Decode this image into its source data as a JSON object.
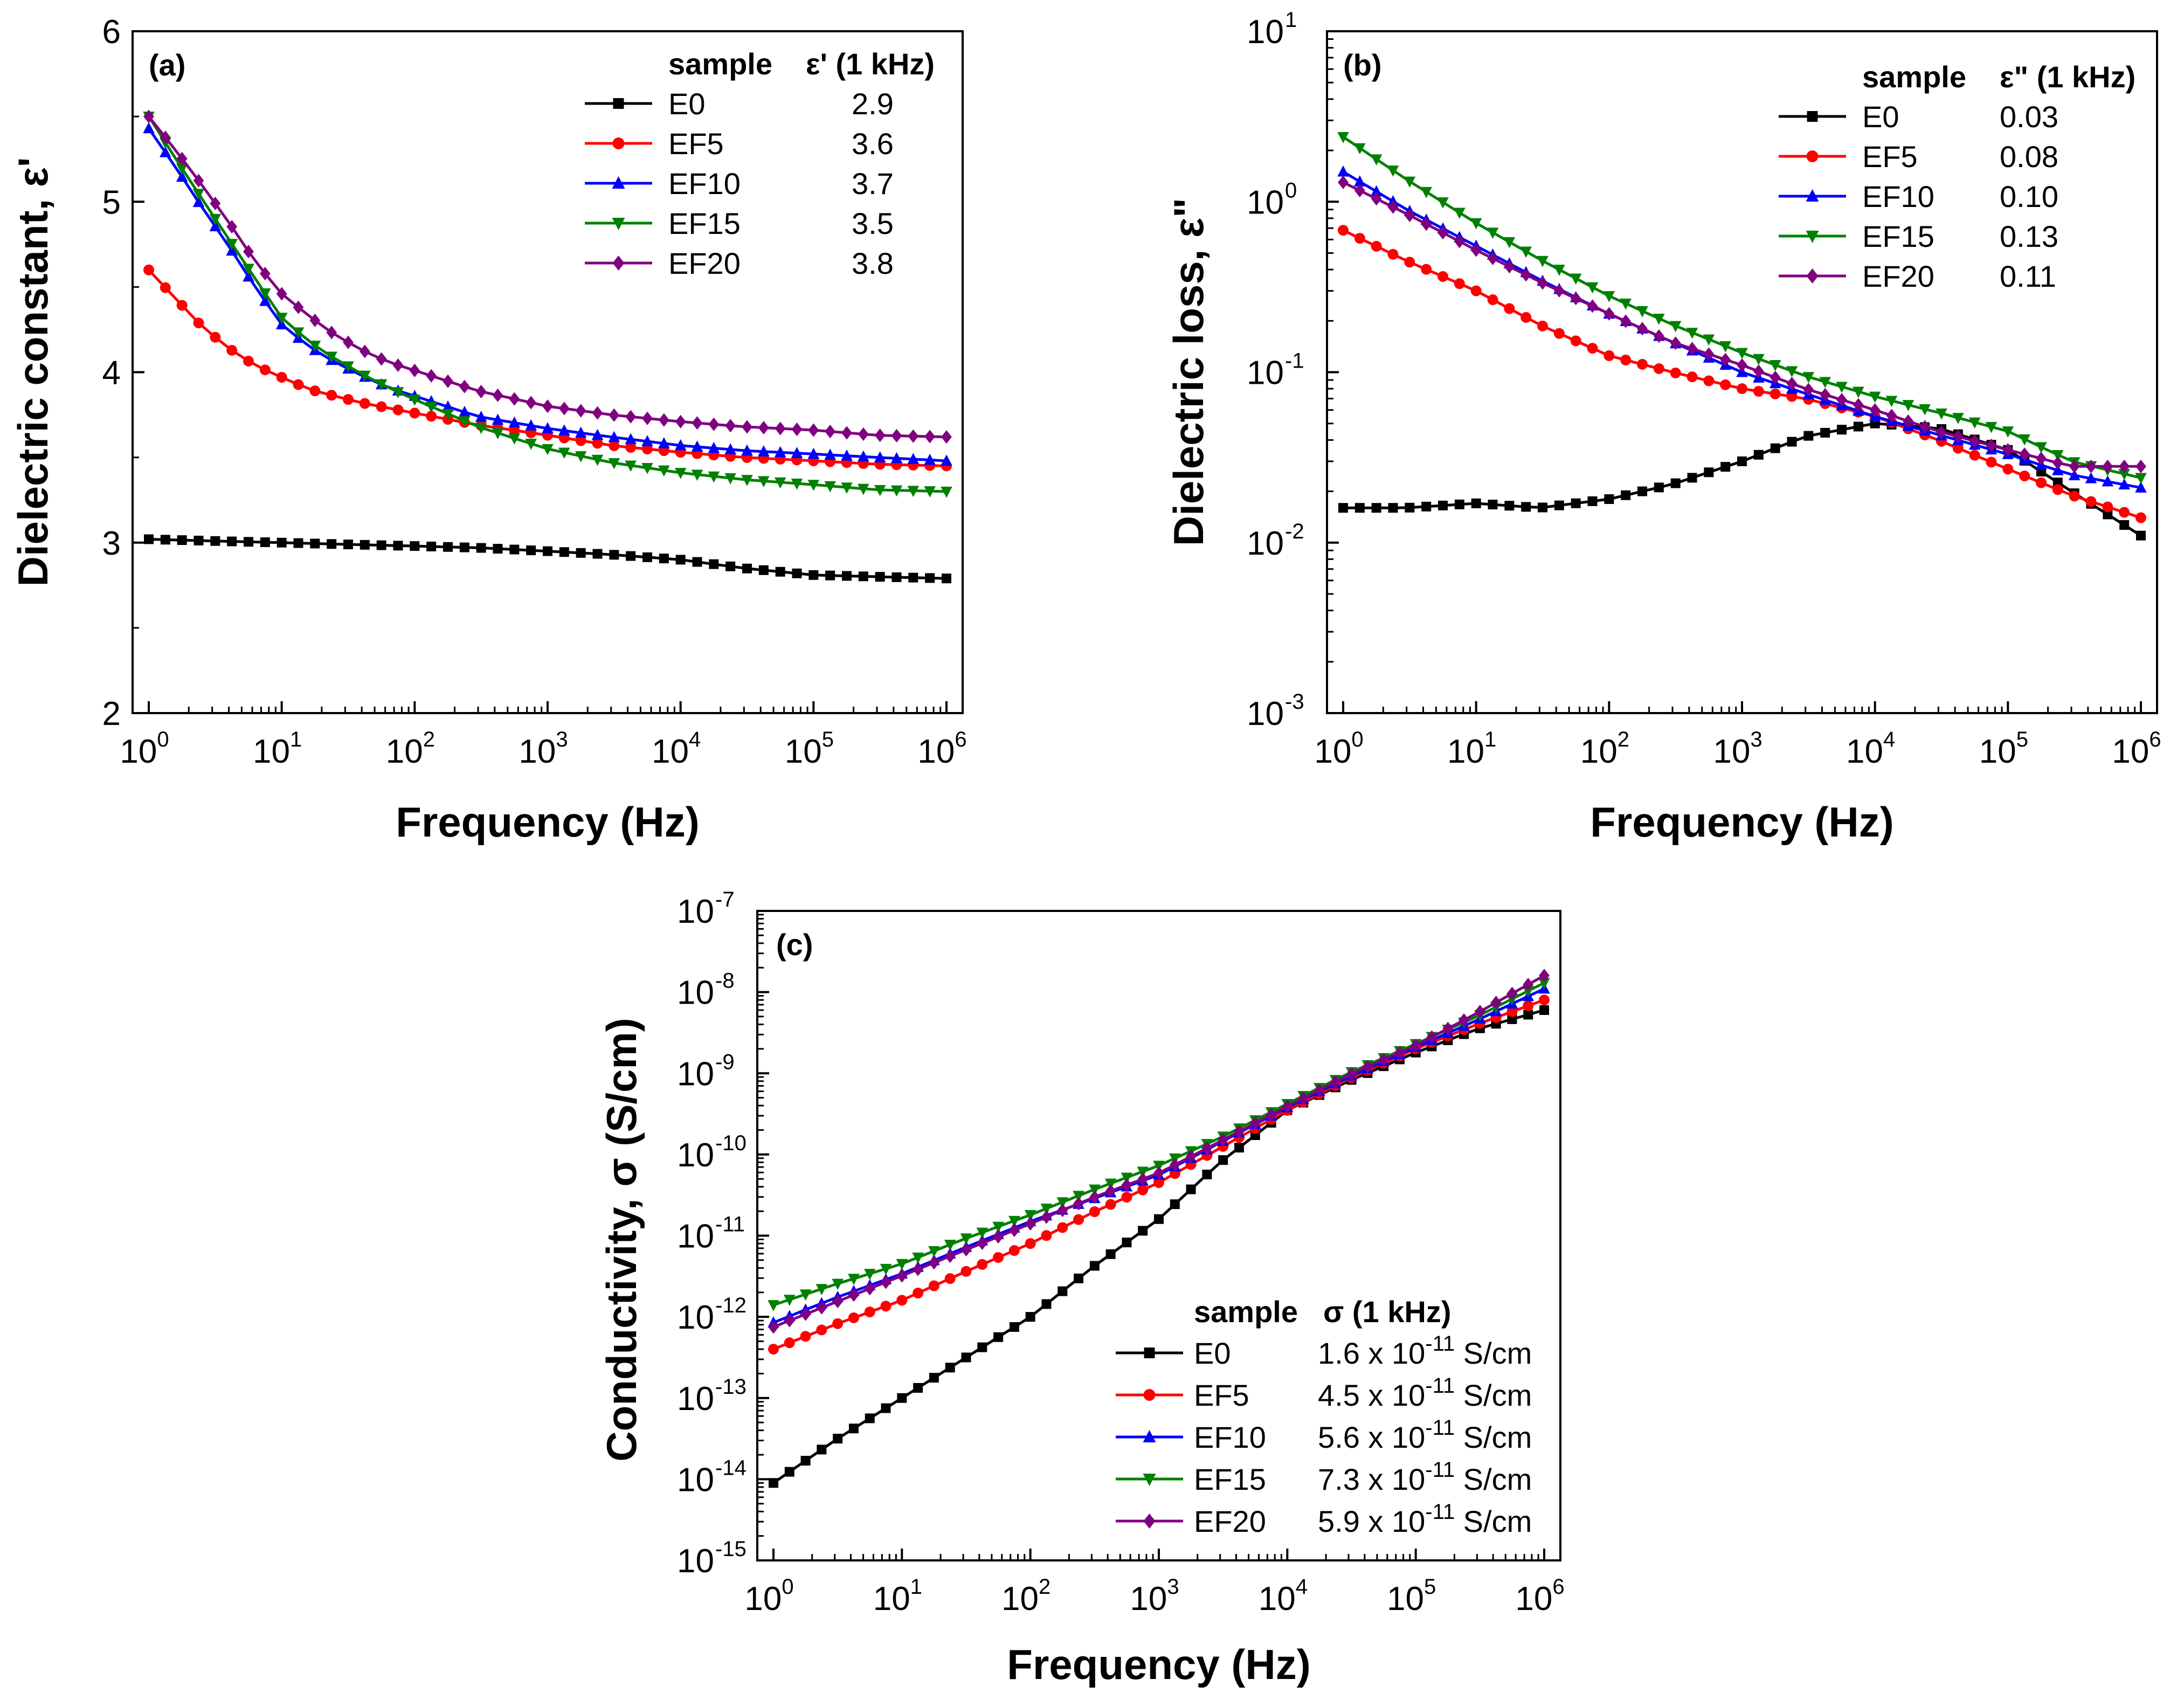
{
  "chart_data": [
    {
      "type": "line",
      "panel_label": "(a)",
      "xlabel": "Frequency (Hz)",
      "ylabel": "Dielectric constant, ε'",
      "xscale": "log",
      "yscale": "linear",
      "xlim": [
        1,
        1000000
      ],
      "ylim": [
        2,
        6
      ],
      "x_ticks": [
        {
          "base": "10",
          "exp": "0"
        },
        {
          "base": "10",
          "exp": "1"
        },
        {
          "base": "10",
          "exp": "2"
        },
        {
          "base": "10",
          "exp": "3"
        },
        {
          "base": "10",
          "exp": "4"
        },
        {
          "base": "10",
          "exp": "5"
        },
        {
          "base": "10",
          "exp": "6"
        }
      ],
      "y_ticks": [
        "2",
        "3",
        "4",
        "5",
        "6"
      ],
      "legend_position": "top-right",
      "legend_header": {
        "sample": "sample",
        "value": "ε' (1 kHz)"
      },
      "legend": [
        {
          "name": "E0",
          "value": "2.9"
        },
        {
          "name": "EF5",
          "value": "3.6"
        },
        {
          "name": "EF10",
          "value": "3.7"
        },
        {
          "name": "EF15",
          "value": "3.5"
        },
        {
          "name": "EF20",
          "value": "3.8"
        }
      ],
      "series": [
        {
          "name": "E0",
          "color": "#000000",
          "marker": "square",
          "x": [
            1,
            3,
            10,
            30,
            100,
            300,
            1000,
            3000,
            10000,
            30000,
            100000,
            300000,
            1000000
          ],
          "y": [
            3.02,
            3.01,
            3.0,
            2.99,
            2.98,
            2.97,
            2.95,
            2.93,
            2.9,
            2.85,
            2.81,
            2.8,
            2.79
          ]
        },
        {
          "name": "EF5",
          "color": "#ff0000",
          "marker": "circle",
          "x": [
            1,
            1.6,
            2.5,
            4,
            6.3,
            10,
            16,
            25,
            40,
            63,
            100,
            300,
            1000,
            3000,
            10000,
            30000,
            100000,
            300000,
            1000000
          ],
          "y": [
            4.6,
            4.43,
            4.27,
            4.14,
            4.04,
            3.97,
            3.9,
            3.86,
            3.82,
            3.79,
            3.76,
            3.69,
            3.63,
            3.57,
            3.53,
            3.5,
            3.48,
            3.46,
            3.45
          ]
        },
        {
          "name": "EF10",
          "color": "#0000ff",
          "marker": "triangle-up",
          "x": [
            1,
            1.6,
            2.5,
            4,
            6.3,
            10,
            16,
            25,
            40,
            63,
            100,
            300,
            1000,
            3000,
            10000,
            30000,
            100000,
            300000,
            1000000
          ],
          "y": [
            5.43,
            5.2,
            4.97,
            4.74,
            4.5,
            4.28,
            4.15,
            4.06,
            3.98,
            3.91,
            3.86,
            3.74,
            3.67,
            3.62,
            3.57,
            3.54,
            3.52,
            3.5,
            3.48
          ]
        },
        {
          "name": "EF15",
          "color": "#008000",
          "marker": "triangle-down",
          "x": [
            1,
            1.6,
            2.5,
            4,
            6.3,
            10,
            16,
            25,
            40,
            63,
            100,
            300,
            1000,
            3000,
            10000,
            30000,
            100000,
            300000,
            1000000
          ],
          "y": [
            5.5,
            5.25,
            5.02,
            4.78,
            4.55,
            4.32,
            4.18,
            4.08,
            3.99,
            3.91,
            3.84,
            3.68,
            3.55,
            3.47,
            3.41,
            3.37,
            3.34,
            3.31,
            3.3
          ]
        },
        {
          "name": "EF20",
          "color": "#800080",
          "marker": "diamond",
          "x": [
            1,
            1.6,
            2.5,
            4,
            6.3,
            10,
            16,
            25,
            40,
            63,
            100,
            300,
            1000,
            3000,
            10000,
            30000,
            100000,
            300000,
            1000000
          ],
          "y": [
            5.5,
            5.3,
            5.1,
            4.88,
            4.65,
            4.46,
            4.33,
            4.22,
            4.13,
            4.06,
            4.01,
            3.89,
            3.8,
            3.75,
            3.71,
            3.68,
            3.66,
            3.63,
            3.62
          ]
        }
      ]
    },
    {
      "type": "line",
      "panel_label": "(b)",
      "xlabel": "Frequency (Hz)",
      "ylabel": "Dielectric loss, ε\"",
      "xscale": "log",
      "yscale": "log",
      "xlim": [
        1,
        1000000
      ],
      "ylim": [
        0.001,
        10
      ],
      "x_ticks": [
        {
          "base": "10",
          "exp": "0"
        },
        {
          "base": "10",
          "exp": "1"
        },
        {
          "base": "10",
          "exp": "2"
        },
        {
          "base": "10",
          "exp": "3"
        },
        {
          "base": "10",
          "exp": "4"
        },
        {
          "base": "10",
          "exp": "5"
        },
        {
          "base": "10",
          "exp": "6"
        }
      ],
      "y_ticks": [
        {
          "base": "10",
          "exp": "-3"
        },
        {
          "base": "10",
          "exp": "-2"
        },
        {
          "base": "10",
          "exp": "-1"
        },
        {
          "base": "10",
          "exp": "0"
        },
        {
          "base": "10",
          "exp": "1"
        }
      ],
      "legend_position": "top-right",
      "legend_header": {
        "sample": "sample",
        "value": "ε\" (1 kHz)"
      },
      "legend": [
        {
          "name": "E0",
          "value": "0.03"
        },
        {
          "name": "EF5",
          "value": "0.08"
        },
        {
          "name": "EF10",
          "value": "0.10"
        },
        {
          "name": "EF15",
          "value": "0.13"
        },
        {
          "name": "EF20",
          "value": "0.11"
        }
      ],
      "series": [
        {
          "name": "E0",
          "color": "#000000",
          "marker": "square",
          "x": [
            1,
            3,
            10,
            30,
            100,
            300,
            1000,
            3000,
            10000,
            30000,
            100000,
            300000,
            1000000
          ],
          "y": [
            0.016,
            0.016,
            0.017,
            0.016,
            0.018,
            0.022,
            0.03,
            0.042,
            0.05,
            0.047,
            0.035,
            0.02,
            0.011
          ]
        },
        {
          "name": "EF5",
          "color": "#ff0000",
          "marker": "circle",
          "x": [
            1,
            3,
            10,
            30,
            100,
            300,
            1000,
            3000,
            10000,
            30000,
            100000,
            300000,
            1000000
          ],
          "y": [
            0.68,
            0.45,
            0.3,
            0.19,
            0.125,
            0.1,
            0.08,
            0.07,
            0.055,
            0.04,
            0.027,
            0.019,
            0.014
          ]
        },
        {
          "name": "EF10",
          "color": "#0000ff",
          "marker": "triangle-up",
          "x": [
            1,
            3,
            10,
            30,
            100,
            300,
            1000,
            3000,
            10000,
            30000,
            100000,
            300000,
            1000000
          ],
          "y": [
            1.5,
            0.9,
            0.55,
            0.35,
            0.22,
            0.15,
            0.1,
            0.075,
            0.055,
            0.043,
            0.033,
            0.025,
            0.021
          ]
        },
        {
          "name": "EF15",
          "color": "#008000",
          "marker": "triangle-down",
          "x": [
            1,
            3,
            10,
            30,
            100,
            300,
            1000,
            3000,
            10000,
            30000,
            100000,
            300000,
            1000000
          ],
          "y": [
            2.4,
            1.35,
            0.75,
            0.46,
            0.28,
            0.19,
            0.13,
            0.095,
            0.072,
            0.058,
            0.045,
            0.03,
            0.024
          ]
        },
        {
          "name": "EF20",
          "color": "#800080",
          "marker": "diamond",
          "x": [
            1,
            3,
            10,
            30,
            100,
            300,
            1000,
            3000,
            10000,
            30000,
            100000,
            300000,
            1000000
          ],
          "y": [
            1.3,
            0.85,
            0.52,
            0.34,
            0.22,
            0.15,
            0.11,
            0.08,
            0.06,
            0.045,
            0.035,
            0.028,
            0.028
          ]
        }
      ]
    },
    {
      "type": "line",
      "panel_label": "(c)",
      "xlabel": "Frequency (Hz)",
      "ylabel": "Conductivity, σ (S/cm)",
      "xscale": "log",
      "yscale": "log",
      "xlim": [
        1,
        1000000
      ],
      "ylim": [
        1e-15,
        1e-07
      ],
      "x_ticks": [
        {
          "base": "10",
          "exp": "0"
        },
        {
          "base": "10",
          "exp": "1"
        },
        {
          "base": "10",
          "exp": "2"
        },
        {
          "base": "10",
          "exp": "3"
        },
        {
          "base": "10",
          "exp": "4"
        },
        {
          "base": "10",
          "exp": "5"
        },
        {
          "base": "10",
          "exp": "6"
        }
      ],
      "y_ticks": [
        {
          "base": "10",
          "exp": "-15"
        },
        {
          "base": "10",
          "exp": "-14"
        },
        {
          "base": "10",
          "exp": "-13"
        },
        {
          "base": "10",
          "exp": "-12"
        },
        {
          "base": "10",
          "exp": "-11"
        },
        {
          "base": "10",
          "exp": "-10"
        },
        {
          "base": "10",
          "exp": "-9"
        },
        {
          "base": "10",
          "exp": "-8"
        },
        {
          "base": "10",
          "exp": "-7"
        }
      ],
      "legend_position": "bottom-right",
      "legend_header": {
        "sample": "sample",
        "value": "σ (1 kHz)"
      },
      "legend": [
        {
          "name": "E0",
          "mant": "1.6 x 10",
          "exp": "-11",
          "unit": " S/cm"
        },
        {
          "name": "EF5",
          "mant": "4.5 x 10",
          "exp": "-11",
          "unit": " S/cm"
        },
        {
          "name": "EF10",
          "mant": "5.6 x 10",
          "exp": "-11",
          "unit": " S/cm"
        },
        {
          "name": "EF15",
          "mant": "7.3 x 10",
          "exp": "-11",
          "unit": " S/cm"
        },
        {
          "name": "EF20",
          "mant": "5.9 x 10",
          "exp": "-11",
          "unit": " S/cm"
        }
      ],
      "series": [
        {
          "name": "E0",
          "color": "#000000",
          "marker": "square",
          "x": [
            1,
            3,
            10,
            30,
            100,
            300,
            1000,
            3000,
            10000,
            30000,
            100000,
            300000,
            1000000
          ],
          "y": [
            9e-15,
            3e-14,
            1e-13,
            3e-13,
            1e-12,
            4e-12,
            1.6e-11,
            8e-11,
            3.5e-10,
            8e-10,
            1.8e-09,
            3.5e-09,
            6e-09
          ]
        },
        {
          "name": "EF5",
          "color": "#ff0000",
          "marker": "circle",
          "x": [
            1,
            3,
            10,
            30,
            100,
            300,
            1000,
            3000,
            10000,
            30000,
            100000,
            300000,
            1000000
          ],
          "y": [
            4e-13,
            8e-13,
            1.6e-12,
            3.5e-12,
            8e-12,
            1.9e-11,
            4.5e-11,
            1.2e-10,
            3.5e-10,
            8.5e-10,
            2e-09,
            4e-09,
            8e-09
          ]
        },
        {
          "name": "EF10",
          "color": "#0000ff",
          "marker": "triangle-up",
          "x": [
            1,
            3,
            10,
            30,
            100,
            300,
            1000,
            3000,
            10000,
            30000,
            100000,
            300000,
            1000000
          ],
          "y": [
            8.5e-13,
            1.7e-12,
            3.4e-12,
            7e-12,
            1.5e-11,
            2.8e-11,
            5.6e-11,
            1.4e-10,
            3.8e-10,
            9e-10,
            2.1e-09,
            4.5e-09,
            1.1e-08
          ]
        },
        {
          "name": "EF15",
          "color": "#008000",
          "marker": "triangle-down",
          "x": [
            1,
            3,
            10,
            30,
            100,
            300,
            1000,
            3000,
            10000,
            30000,
            100000,
            300000,
            1000000
          ],
          "y": [
            1.4e-12,
            2.5e-12,
            4.5e-12,
            9e-12,
            1.8e-11,
            3.6e-11,
            7.3e-11,
            1.6e-10,
            4.2e-10,
            1e-09,
            2.3e-09,
            5e-09,
            1.3e-08
          ]
        },
        {
          "name": "EF20",
          "color": "#800080",
          "marker": "diamond",
          "x": [
            1,
            3,
            10,
            30,
            100,
            300,
            1000,
            3000,
            10000,
            30000,
            100000,
            300000,
            1000000
          ],
          "y": [
            7.5e-13,
            1.5e-12,
            3.2e-12,
            6.5e-12,
            1.4e-11,
            2.9e-11,
            5.9e-11,
            1.45e-10,
            3.9e-10,
            9.5e-10,
            2.2e-09,
            5.5e-09,
            1.6e-08
          ]
        }
      ]
    }
  ]
}
